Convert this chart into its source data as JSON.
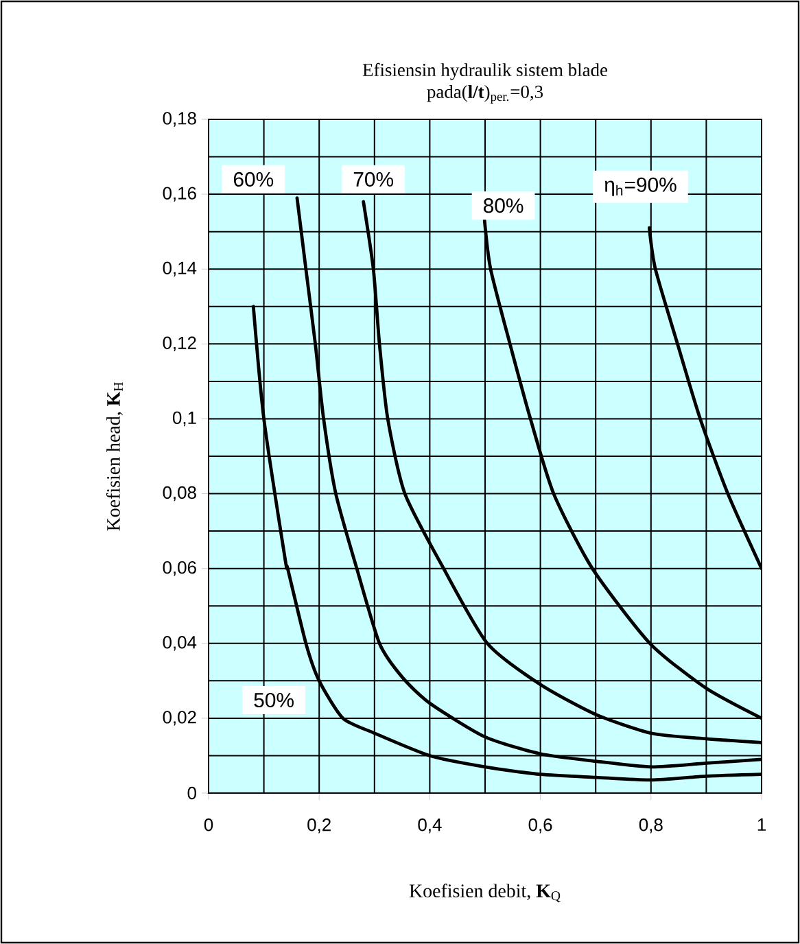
{
  "chart_data": {
    "type": "line",
    "title": "Efisiensin hydraulik sistem blade",
    "subtitle": "pada(**l/t**)$_{per.}$=0,3",
    "xlabel": "Koefisien debit, **K**$_{Q}$",
    "ylabel": "Koefisien head, **K**$_{H}$",
    "xlim": [
      0,
      1
    ],
    "ylim": [
      0,
      0.18
    ],
    "xticks": [
      0,
      {
        "value": 0.2,
        "label": "0,2"
      },
      {
        "value": 0.4,
        "label": "0,4"
      },
      {
        "value": 0.6,
        "label": "0,6"
      },
      {
        "value": 0.8,
        "label": "0,8"
      },
      1
    ],
    "yticks": [
      0,
      {
        "value": 0.02,
        "label": "0,02"
      },
      {
        "value": 0.04,
        "label": "0,04"
      },
      {
        "value": 0.06,
        "label": "0,06"
      },
      {
        "value": 0.08,
        "label": "0,08"
      },
      {
        "value": 0.1,
        "label": "0,1"
      },
      {
        "value": 0.12,
        "label": "0,12"
      },
      {
        "value": 0.14,
        "label": "0,14"
      },
      {
        "value": 0.16,
        "label": "0,16"
      },
      {
        "value": 0.18,
        "label": "0,18"
      }
    ],
    "grid": true,
    "marker": "none",
    "line_style": "solid",
    "series": [
      {
        "color": "#000000",
        "x": [
          0.081,
          0.1,
          0.139,
          0.143,
          0.176,
          0.2,
          0.243,
          0.3,
          0.4,
          0.5,
          0.6,
          0.7,
          0.8,
          0.9,
          1
        ],
        "values": [
          0.13,
          0.1,
          0.062,
          0.06,
          0.04,
          0.03,
          0.02,
          0.016,
          0.01,
          0.007,
          0.005,
          0.0042,
          0.0035,
          0.0045,
          0.005
        ]
      },
      {
        "color": "#000000",
        "x": [
          0.16,
          0.176,
          0.193,
          0.208,
          0.23,
          0.268,
          0.309,
          0.35,
          0.4,
          0.5,
          0.6,
          0.7,
          0.8,
          0.9,
          1
        ],
        "values": [
          0.159,
          0.14,
          0.12,
          0.1,
          0.08,
          0.06,
          0.04,
          0.031,
          0.024,
          0.015,
          0.0105,
          0.0085,
          0.007,
          0.008,
          0.009
        ]
      },
      {
        "color": "#000000",
        "x": [
          0.28,
          0.298,
          0.309,
          0.324,
          0.355,
          0.425,
          0.504,
          0.6,
          0.7,
          0.8,
          0.9,
          1
        ],
        "values": [
          0.158,
          0.14,
          0.12,
          0.1,
          0.08,
          0.06,
          0.04,
          0.029,
          0.021,
          0.016,
          0.0145,
          0.0135
        ]
      },
      {
        "color": "#000000",
        "x": [
          0.499,
          0.51,
          0.545,
          0.582,
          0.624,
          0.694,
          0.798,
          0.9,
          1
        ],
        "values": [
          0.153,
          0.14,
          0.12,
          0.1,
          0.08,
          0.06,
          0.04,
          0.028,
          0.02
        ]
      },
      {
        "color": "#000000",
        "x": [
          0.797,
          0.808,
          0.848,
          0.889,
          0.939,
          1
        ],
        "values": [
          0.151,
          0.14,
          0.12,
          0.1,
          0.08,
          0.06
        ]
      }
    ],
    "annotations": [
      "50%",
      "60%",
      "70%",
      "80%",
      "η$_{h}$=90%"
    ]
  }
}
